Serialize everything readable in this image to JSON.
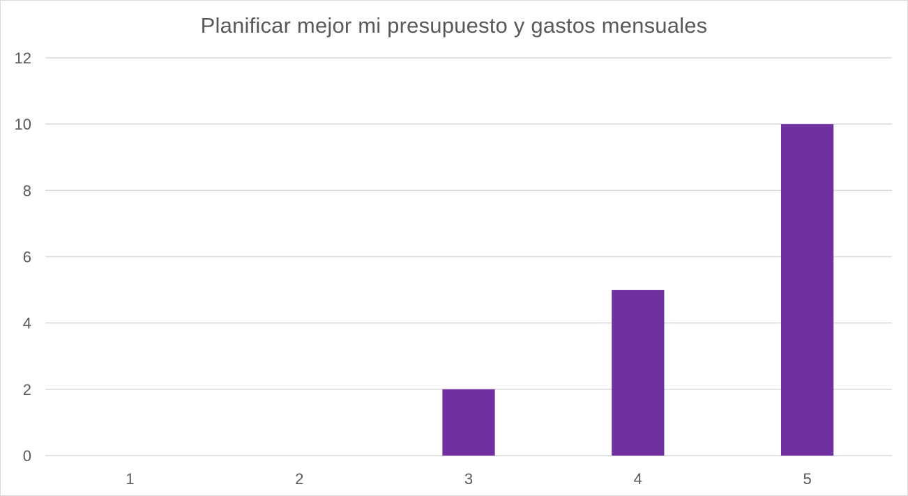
{
  "chart_data": {
    "type": "bar",
    "title": "Planificar mejor mi presupuesto y gastos mensuales",
    "categories": [
      "1",
      "2",
      "3",
      "4",
      "5"
    ],
    "values": [
      0,
      0,
      2,
      5,
      10
    ],
    "xlabel": "",
    "ylabel": "",
    "ylim": [
      0,
      12
    ],
    "yticks": [
      "0",
      "2",
      "4",
      "6",
      "8",
      "10",
      "12"
    ],
    "grid": true,
    "legend": "none",
    "colors": {
      "bar": "#7030a0",
      "grid": "#d9d9d9",
      "text": "#595959"
    }
  }
}
